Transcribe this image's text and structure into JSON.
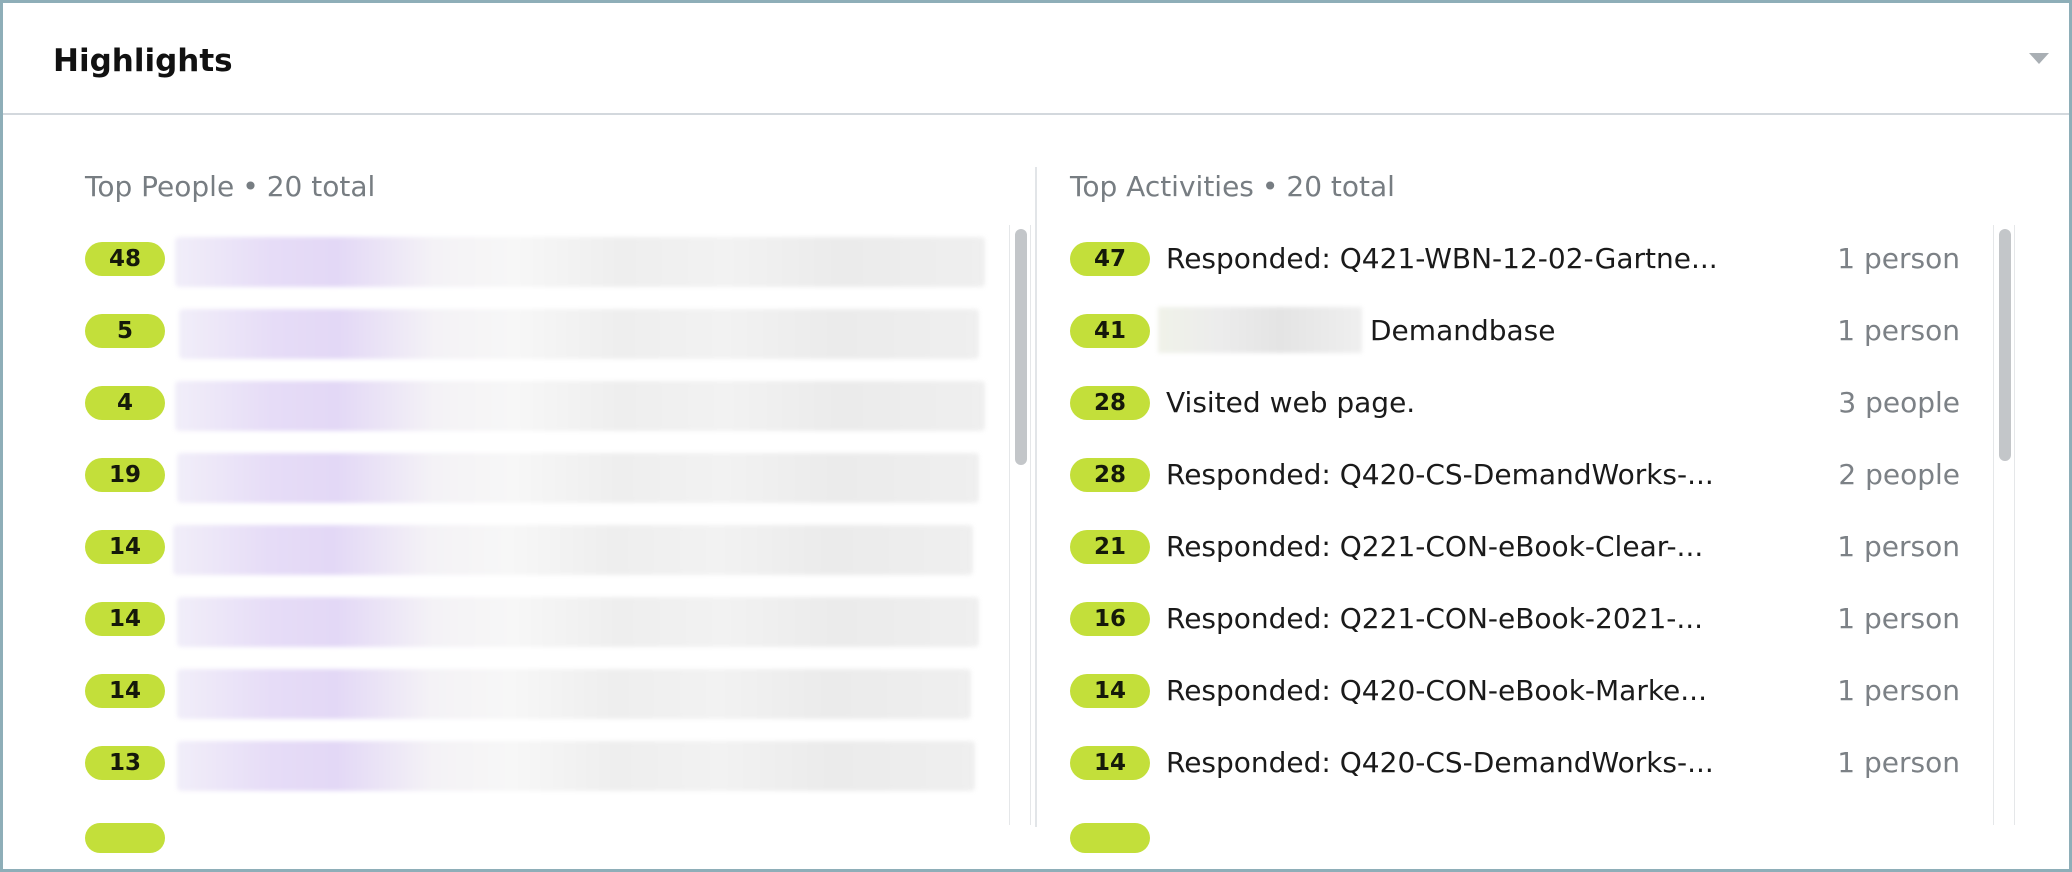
{
  "header": {
    "title": "Highlights"
  },
  "people": {
    "title": "Top People",
    "separator": "•",
    "total_label": "20 total",
    "items": [
      {
        "count": "48"
      },
      {
        "count": "5"
      },
      {
        "count": "4"
      },
      {
        "count": "19"
      },
      {
        "count": "14"
      },
      {
        "count": "14"
      },
      {
        "count": "14"
      },
      {
        "count": "13"
      }
    ]
  },
  "activities": {
    "title": "Top Activities",
    "separator": "•",
    "total_label": "20 total",
    "items": [
      {
        "count": "47",
        "label": "Responded: Q421-WBN-12-02-Gartne...",
        "people": "1 person"
      },
      {
        "count": "41",
        "label": "Demandbase",
        "people": "1 person"
      },
      {
        "count": "28",
        "label": "Visited web page.",
        "people": "3 people"
      },
      {
        "count": "28",
        "label": "Responded: Q420-CS-DemandWorks-...",
        "people": "2 people"
      },
      {
        "count": "21",
        "label": "Responded: Q221-CON-eBook-Clear-...",
        "people": "1 person"
      },
      {
        "count": "16",
        "label": "Responded: Q221-CON-eBook-2021-...",
        "people": "1 person"
      },
      {
        "count": "14",
        "label": "Responded: Q420-CON-eBook-Marke...",
        "people": "1 person"
      },
      {
        "count": "14",
        "label": "Responded: Q420-CS-DemandWorks-...",
        "people": "1 person"
      }
    ]
  },
  "colors": {
    "badge": "#c3df3a",
    "frame": "#8eaeb8",
    "muted_text": "#777d82"
  }
}
